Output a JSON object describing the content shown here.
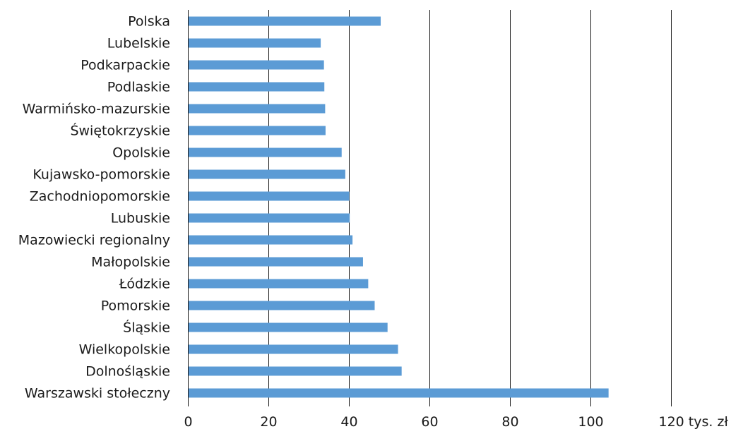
{
  "chart_data": {
    "type": "bar",
    "orientation": "horizontal",
    "categories": [
      "Polska",
      "Lubelskie",
      "Podkarpackie",
      "Podlaskie",
      "Warmińsko-mazurskie",
      "Świętokrzyskie",
      "Opolskie",
      "Kujawsko-pomorskie",
      "Zachodniopomorskie",
      "Lubuskie",
      "Mazowiecki regionalny",
      "Małopolskie",
      "Łódzkie",
      "Pomorskie",
      "Śląskie",
      "Wielkopolskie",
      "Dolnośląskie",
      "Warszawski stołeczny"
    ],
    "values": [
      47.9,
      33.0,
      33.8,
      33.9,
      34.1,
      34.2,
      38.2,
      39.1,
      40.1,
      40.2,
      40.9,
      43.5,
      44.8,
      46.4,
      49.6,
      52.2,
      53.1,
      104.5
    ],
    "xlim": [
      0,
      120
    ],
    "xticks": [
      "0",
      "20",
      "40",
      "60",
      "80",
      "100",
      "120 tys. zł"
    ],
    "xtick_values": [
      0,
      20,
      40,
      60,
      80,
      100,
      120
    ],
    "grid": true,
    "legend": "none",
    "bar_color": "#5b9bd5",
    "title": "",
    "xlabel": "",
    "ylabel": ""
  }
}
